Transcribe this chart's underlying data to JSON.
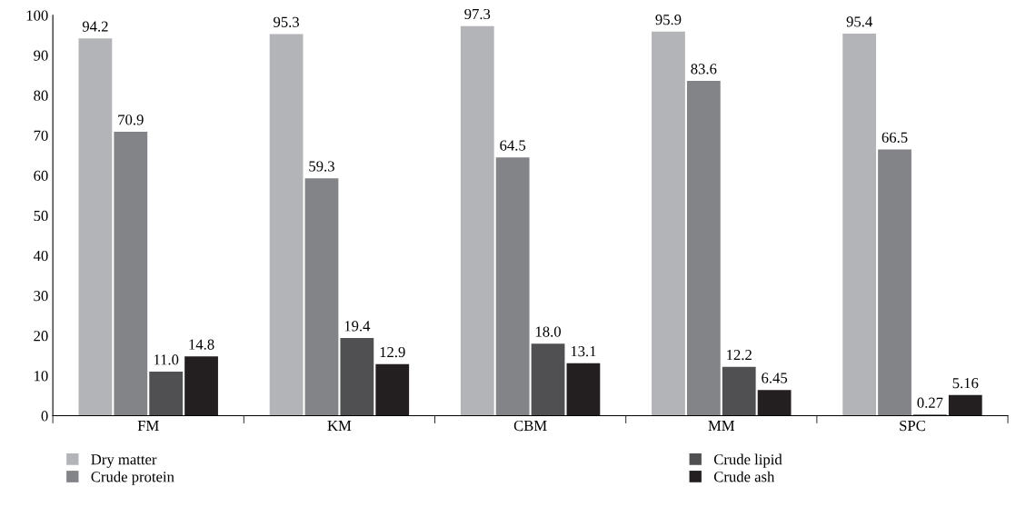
{
  "chart_data": {
    "type": "bar",
    "categories": [
      "FM",
      "KM",
      "CBM",
      "MM",
      "SPC"
    ],
    "series": [
      {
        "name": "Dry matter",
        "color": "#b3b4b7",
        "values": [
          94.2,
          95.3,
          97.3,
          95.9,
          95.4
        ],
        "value_labels": [
          "94.2",
          "95.3",
          "97.3",
          "95.9",
          "95.4"
        ]
      },
      {
        "name": "Crude protein",
        "color": "#838487",
        "values": [
          70.9,
          59.3,
          64.5,
          83.6,
          66.5
        ],
        "value_labels": [
          "70.9",
          "59.3",
          "64.5",
          "83.6",
          "66.5"
        ]
      },
      {
        "name": "Crude lipid",
        "color": "#505052",
        "values": [
          11.0,
          19.4,
          18.0,
          12.2,
          0.27
        ],
        "value_labels": [
          "11.0",
          "19.4",
          "18.0",
          "12.2",
          "0.27"
        ]
      },
      {
        "name": "Crude ash",
        "color": "#231f20",
        "values": [
          14.8,
          12.9,
          13.1,
          6.45,
          5.16
        ],
        "value_labels": [
          "14.8",
          "12.9",
          "13.1",
          "6.45",
          "5.16"
        ]
      }
    ],
    "ylim": [
      0,
      100
    ],
    "yticks": [
      0,
      10,
      20,
      30,
      40,
      50,
      60,
      70,
      80,
      90,
      100
    ],
    "grid": false,
    "legend": "bottom"
  }
}
